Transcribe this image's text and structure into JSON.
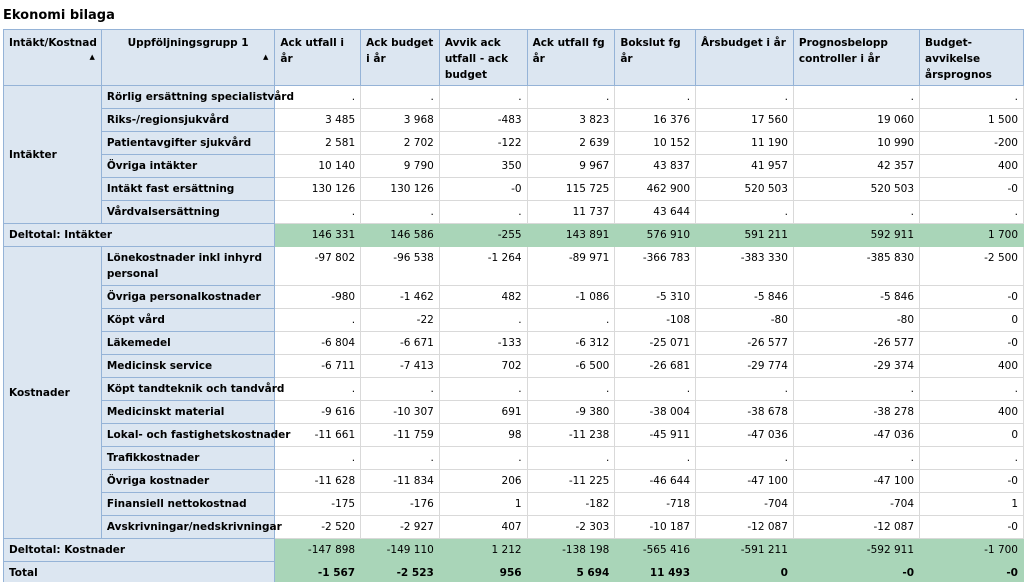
{
  "title": "Ekonomi bilaga",
  "columns": [
    "Intäkt/Kostnad",
    "Uppföljningsgrupp 1",
    "Ack utfall i år",
    "Ack budget i år",
    "Avvik ack utfall - ack budget",
    "Ack utfall fg år",
    "Bokslut fg år",
    "Årsbudget i år",
    "Prognosbelopp controller i år",
    "Budget-avvikelse årsprognos"
  ],
  "sort_icon": "sort-ascending-icon",
  "groups": [
    {
      "label": "Intäkter",
      "rows": [
        {
          "name": "Rörlig ersättning specialistvård",
          "values": [
            ".",
            ".",
            ".",
            ".",
            ".",
            ".",
            ".",
            "."
          ]
        },
        {
          "name": "Riks-/regionsjukvård",
          "values": [
            "3 485",
            "3 968",
            "-483",
            "3 823",
            "16 376",
            "17 560",
            "19 060",
            "1 500"
          ]
        },
        {
          "name": "Patientavgifter sjukvård",
          "values": [
            "2 581",
            "2 702",
            "-122",
            "2 639",
            "10 152",
            "11 190",
            "10 990",
            "-200"
          ]
        },
        {
          "name": "Övriga intäkter",
          "values": [
            "10 140",
            "9 790",
            "350",
            "9 967",
            "43 837",
            "41 957",
            "42 357",
            "400"
          ]
        },
        {
          "name": "Intäkt fast ersättning",
          "values": [
            "130 126",
            "130 126",
            "-0",
            "115 725",
            "462 900",
            "520 503",
            "520 503",
            "-0"
          ]
        },
        {
          "name": "Vårdvalsersättning",
          "values": [
            ".",
            ".",
            ".",
            "11 737",
            "43 644",
            ".",
            ".",
            "."
          ]
        }
      ],
      "subtotal": {
        "label": "Deltotal: Intäkter",
        "values": [
          "146 331",
          "146 586",
          "-255",
          "143 891",
          "576 910",
          "591 211",
          "592 911",
          "1 700"
        ]
      }
    },
    {
      "label": "Kostnader",
      "rows": [
        {
          "name": "Lönekostnader inkl inhyrd personal",
          "values": [
            "-97 802",
            "-96 538",
            "-1 264",
            "-89 971",
            "-366 783",
            "-383 330",
            "-385 830",
            "-2 500"
          ]
        },
        {
          "name": "Övriga personalkostnader",
          "values": [
            "-980",
            "-1 462",
            "482",
            "-1 086",
            "-5 310",
            "-5 846",
            "-5 846",
            "-0"
          ]
        },
        {
          "name": "Köpt vård",
          "values": [
            ".",
            "-22",
            ".",
            ".",
            "-108",
            "-80",
            "-80",
            "0"
          ]
        },
        {
          "name": "Läkemedel",
          "values": [
            "-6 804",
            "-6 671",
            "-133",
            "-6 312",
            "-25 071",
            "-26 577",
            "-26 577",
            "-0"
          ]
        },
        {
          "name": "Medicinsk service",
          "values": [
            "-6 711",
            "-7 413",
            "702",
            "-6 500",
            "-26 681",
            "-29 774",
            "-29 374",
            "400"
          ]
        },
        {
          "name": "Köpt tandteknik och tandvård",
          "values": [
            ".",
            ".",
            ".",
            ".",
            ".",
            ".",
            ".",
            "."
          ]
        },
        {
          "name": "Medicinskt material",
          "values": [
            "-9 616",
            "-10 307",
            "691",
            "-9 380",
            "-38 004",
            "-38 678",
            "-38 278",
            "400"
          ]
        },
        {
          "name": "Lokal- och fastighetskostnader",
          "values": [
            "-11 661",
            "-11 759",
            "98",
            "-11 238",
            "-45 911",
            "-47 036",
            "-47 036",
            "0"
          ]
        },
        {
          "name": "Trafikkostnader",
          "values": [
            ".",
            ".",
            ".",
            ".",
            ".",
            ".",
            ".",
            "."
          ]
        },
        {
          "name": "Övriga kostnader",
          "values": [
            "-11 628",
            "-11 834",
            "206",
            "-11 225",
            "-46 644",
            "-47 100",
            "-47 100",
            "-0"
          ]
        },
        {
          "name": "Finansiell nettokostnad",
          "values": [
            "-175",
            "-176",
            "1",
            "-182",
            "-718",
            "-704",
            "-704",
            "1"
          ]
        },
        {
          "name": "Avskrivningar/nedskrivningar",
          "values": [
            "-2 520",
            "-2 927",
            "407",
            "-2 303",
            "-10 187",
            "-12 087",
            "-12 087",
            "-0"
          ]
        }
      ],
      "subtotal": {
        "label": "Deltotal: Kostnader",
        "values": [
          "-147 898",
          "-149 110",
          "1 212",
          "-138 198",
          "-565 416",
          "-591 211",
          "-592 911",
          "-1 700"
        ]
      }
    }
  ],
  "total": {
    "label": "Total",
    "values": [
      "-1 567",
      "-2 523",
      "956",
      "5 694",
      "11 493",
      "0",
      "-0",
      "-0"
    ]
  }
}
